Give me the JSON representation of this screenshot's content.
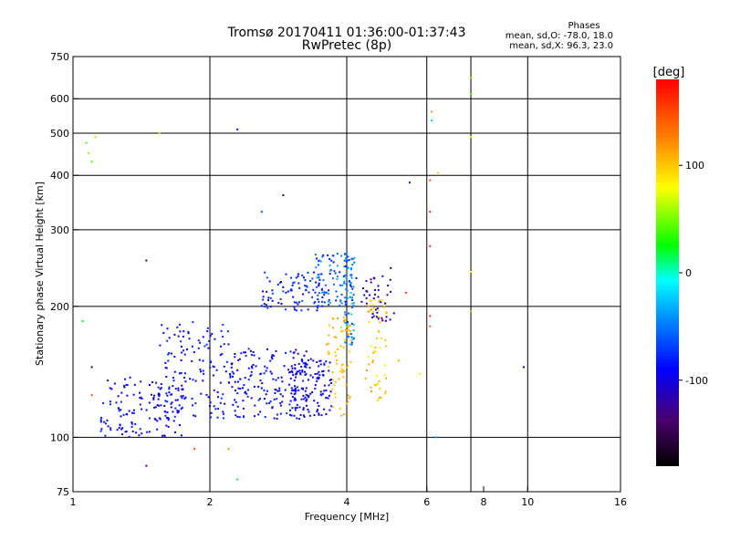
{
  "chart_data": {
    "type": "scatter",
    "title": "Tromsø 20170411 01:36:00-01:37:43",
    "subtitle": "RwPretec (8p)",
    "xlabel": "Frequency [MHz]",
    "ylabel": "Stationary phase Virtual Height [km]",
    "x_scale": "log",
    "y_scale": "log",
    "xlim": [
      1,
      16
    ],
    "ylim": [
      75,
      750
    ],
    "x_ticks": [
      1,
      2,
      4,
      6,
      8,
      10,
      16
    ],
    "x_tick_labels": [
      "1",
      "2",
      "4",
      "6",
      "8",
      "10",
      "16"
    ],
    "x_gridlines": [
      2,
      4,
      6,
      7.5,
      10
    ],
    "y_ticks": [
      75,
      100,
      200,
      300,
      400,
      500,
      600,
      750
    ],
    "y_tick_labels": [
      "75",
      "100",
      "200",
      "300",
      "400",
      "500",
      "600",
      "750"
    ],
    "y_gridlines": [
      100,
      200,
      300,
      400,
      500,
      600
    ],
    "grid": true,
    "phases_title": "Phases",
    "phases_lines": [
      "mean, sd,O: -78.0, 18.0",
      "mean, sd,X:  96.3, 23.0"
    ],
    "colorbar": {
      "label": "[deg]",
      "min": -180,
      "max": 180,
      "ticks": [
        100,
        0,
        -100
      ],
      "tick_labels": [
        "100",
        "0",
        "-100"
      ]
    },
    "clusters": [
      {
        "f": [
          1.15,
          1.75
        ],
        "h": [
          100,
          138
        ],
        "phase": [
          -110,
          -75
        ],
        "n": 140
      },
      {
        "f": [
          1.55,
          2.2
        ],
        "h": [
          110,
          185
        ],
        "phase": [
          -105,
          -70
        ],
        "n": 130
      },
      {
        "f": [
          2.2,
          3.3
        ],
        "h": [
          110,
          160
        ],
        "phase": [
          -105,
          -75
        ],
        "n": 180
      },
      {
        "f": [
          3.0,
          3.7
        ],
        "h": [
          112,
          152
        ],
        "phase": [
          -110,
          -80
        ],
        "n": 120
      },
      {
        "f": [
          2.6,
          3.6
        ],
        "h": [
          195,
          240
        ],
        "phase": [
          -100,
          -60
        ],
        "n": 90
      },
      {
        "f": [
          3.4,
          4.2
        ],
        "h": [
          200,
          265
        ],
        "phase": [
          -90,
          -30
        ],
        "n": 90
      },
      {
        "f": [
          3.95,
          4.15
        ],
        "h": [
          160,
          260
        ],
        "phase": [
          -80,
          -20
        ],
        "n": 60
      },
      {
        "f": [
          3.6,
          4.1
        ],
        "h": [
          112,
          190
        ],
        "phase": [
          95,
          115
        ],
        "n": 70
      },
      {
        "f": [
          4.4,
          4.9
        ],
        "h": [
          120,
          210
        ],
        "phase": [
          80,
          120
        ],
        "n": 60
      },
      {
        "f": [
          4.3,
          5.1
        ],
        "h": [
          185,
          235
        ],
        "phase": [
          -130,
          -95
        ],
        "n": 40
      }
    ],
    "points": [
      {
        "x": 1.07,
        "y": 475,
        "phase": 40
      },
      {
        "x": 1.08,
        "y": 450,
        "phase": 50
      },
      {
        "x": 1.1,
        "y": 430,
        "phase": 40
      },
      {
        "x": 1.12,
        "y": 490,
        "phase": 60
      },
      {
        "x": 1.55,
        "y": 500,
        "phase": 60
      },
      {
        "x": 2.3,
        "y": 510,
        "phase": -120
      },
      {
        "x": 2.6,
        "y": 330,
        "phase": -60
      },
      {
        "x": 2.9,
        "y": 360,
        "phase": -150
      },
      {
        "x": 1.45,
        "y": 255,
        "phase": -150
      },
      {
        "x": 5.5,
        "y": 385,
        "phase": -110
      },
      {
        "x": 6.1,
        "y": 390,
        "phase": 150
      },
      {
        "x": 6.1,
        "y": 330,
        "phase": 160
      },
      {
        "x": 6.15,
        "y": 560,
        "phase": 120
      },
      {
        "x": 6.15,
        "y": 535,
        "phase": -20
      },
      {
        "x": 6.35,
        "y": 405,
        "phase": 100
      },
      {
        "x": 6.1,
        "y": 275,
        "phase": 160
      },
      {
        "x": 7.5,
        "y": 670,
        "phase": 50
      },
      {
        "x": 7.5,
        "y": 615,
        "phase": 40
      },
      {
        "x": 7.5,
        "y": 490,
        "phase": 90
      },
      {
        "x": 7.5,
        "y": 240,
        "phase": 80
      },
      {
        "x": 7.5,
        "y": 195,
        "phase": 110
      },
      {
        "x": 9.8,
        "y": 145,
        "phase": -90
      },
      {
        "x": 6.1,
        "y": 190,
        "phase": 160
      },
      {
        "x": 6.1,
        "y": 180,
        "phase": 140
      },
      {
        "x": 6.3,
        "y": 100,
        "phase": -40
      },
      {
        "x": 5.8,
        "y": 140,
        "phase": 90
      },
      {
        "x": 1.05,
        "y": 185,
        "phase": 20
      },
      {
        "x": 1.1,
        "y": 145,
        "phase": -150
      },
      {
        "x": 1.1,
        "y": 125,
        "phase": 150
      },
      {
        "x": 1.45,
        "y": 86,
        "phase": -130
      },
      {
        "x": 1.85,
        "y": 94,
        "phase": 150
      },
      {
        "x": 2.3,
        "y": 80,
        "phase": 20
      },
      {
        "x": 2.2,
        "y": 94,
        "phase": 120
      },
      {
        "x": 5.2,
        "y": 150,
        "phase": 110
      },
      {
        "x": 5.4,
        "y": 215,
        "phase": 160
      },
      {
        "x": 5.0,
        "y": 245,
        "phase": -160
      }
    ]
  }
}
